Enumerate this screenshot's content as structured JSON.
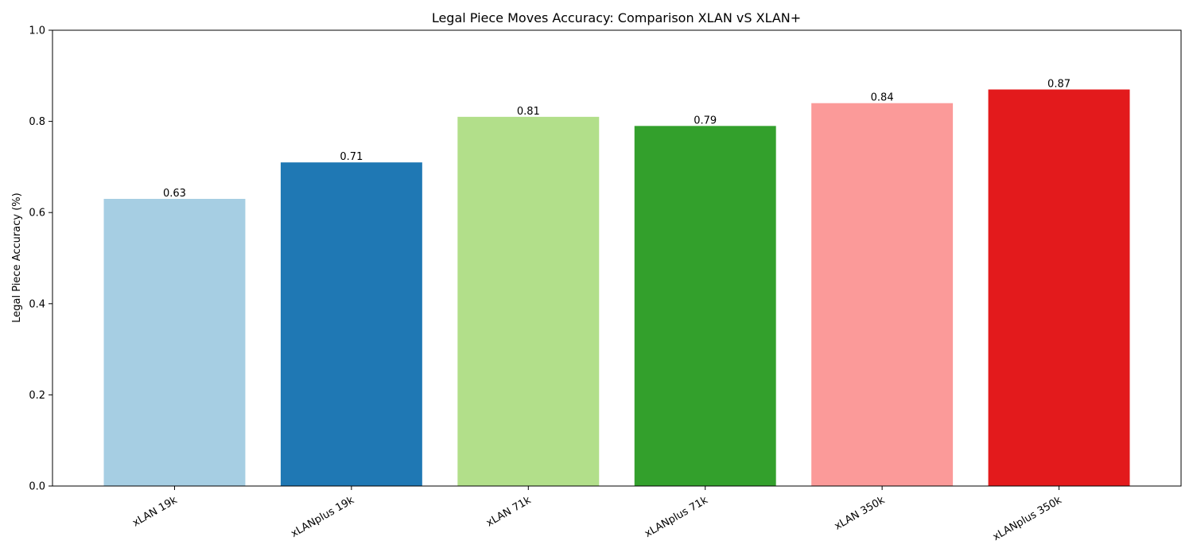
{
  "chart_data": {
    "type": "bar",
    "title": "Legal Piece Moves Accuracy: Comparison XLAN vS XLAN+",
    "xlabel": "",
    "ylabel": "Legal Piece Accuracy (%)",
    "categories": [
      "xLAN 19k",
      "xLANplus 19k",
      "xLAN 71k",
      "xLANplus 71k",
      "xLAN 350k",
      "xLANplus 350k"
    ],
    "values": [
      0.63,
      0.71,
      0.81,
      0.79,
      0.84,
      0.87
    ],
    "value_labels": [
      "0.63",
      "0.71",
      "0.81",
      "0.79",
      "0.84",
      "0.87"
    ],
    "colors": [
      "#a6cee3",
      "#1f78b4",
      "#b2df8a",
      "#33a02c",
      "#fb9a99",
      "#e31a1c"
    ],
    "ylim": [
      0,
      1.0
    ],
    "yticks": [
      0.0,
      0.2,
      0.4,
      0.6,
      0.8,
      1.0
    ],
    "ytick_labels": [
      "0.0",
      "0.2",
      "0.4",
      "0.6",
      "0.8",
      "1.0"
    ],
    "grid": false,
    "legend": "none"
  }
}
